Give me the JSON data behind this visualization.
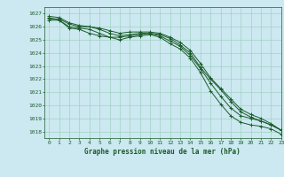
{
  "title": "Graphe pression niveau de la mer (hPa)",
  "background_color": "#cce8f0",
  "plot_bg_color": "#cce8f0",
  "grid_color": "#99ccbb",
  "line_color": "#1a5c2a",
  "marker_color": "#1a5c2a",
  "xlim": [
    -0.5,
    23
  ],
  "ylim": [
    1017.5,
    1027.5
  ],
  "yticks": [
    1018,
    1019,
    1020,
    1021,
    1022,
    1023,
    1024,
    1025,
    1026,
    1027
  ],
  "xticks": [
    0,
    1,
    2,
    3,
    4,
    5,
    6,
    7,
    8,
    9,
    10,
    11,
    12,
    13,
    14,
    15,
    16,
    17,
    18,
    19,
    20,
    21,
    22,
    23
  ],
  "series": [
    [
      1026.5,
      1026.5,
      1026.0,
      1025.9,
      1025.8,
      1025.5,
      1025.2,
      1025.0,
      1025.2,
      1025.3,
      1025.4,
      1025.2,
      1024.7,
      1024.3,
      1023.6,
      1022.5,
      1021.1,
      1020.1,
      1019.2,
      1018.7,
      1018.5,
      1018.4,
      1018.2,
      1017.8
    ],
    [
      1026.6,
      1026.6,
      1026.2,
      1026.0,
      1026.0,
      1025.8,
      1025.5,
      1025.3,
      1025.4,
      1025.5,
      1025.5,
      1025.3,
      1024.9,
      1024.5,
      1023.8,
      1022.8,
      1021.7,
      1020.7,
      1019.8,
      1019.2,
      1019.0,
      1018.8,
      1018.5,
      1018.1
    ],
    [
      1026.7,
      1026.5,
      1025.9,
      1025.8,
      1025.5,
      1025.3,
      1025.2,
      1025.2,
      1025.3,
      1025.4,
      1025.5,
      1025.4,
      1025.1,
      1024.6,
      1024.0,
      1022.9,
      1022.0,
      1021.2,
      1020.3,
      1019.5,
      1019.1,
      1018.8,
      1018.5,
      1018.1
    ],
    [
      1026.8,
      1026.7,
      1026.3,
      1026.1,
      1026.0,
      1025.9,
      1025.7,
      1025.5,
      1025.6,
      1025.6,
      1025.6,
      1025.5,
      1025.2,
      1024.8,
      1024.2,
      1023.2,
      1022.1,
      1021.3,
      1020.5,
      1019.7,
      1019.3,
      1019.0,
      1018.6,
      1018.1
    ]
  ]
}
